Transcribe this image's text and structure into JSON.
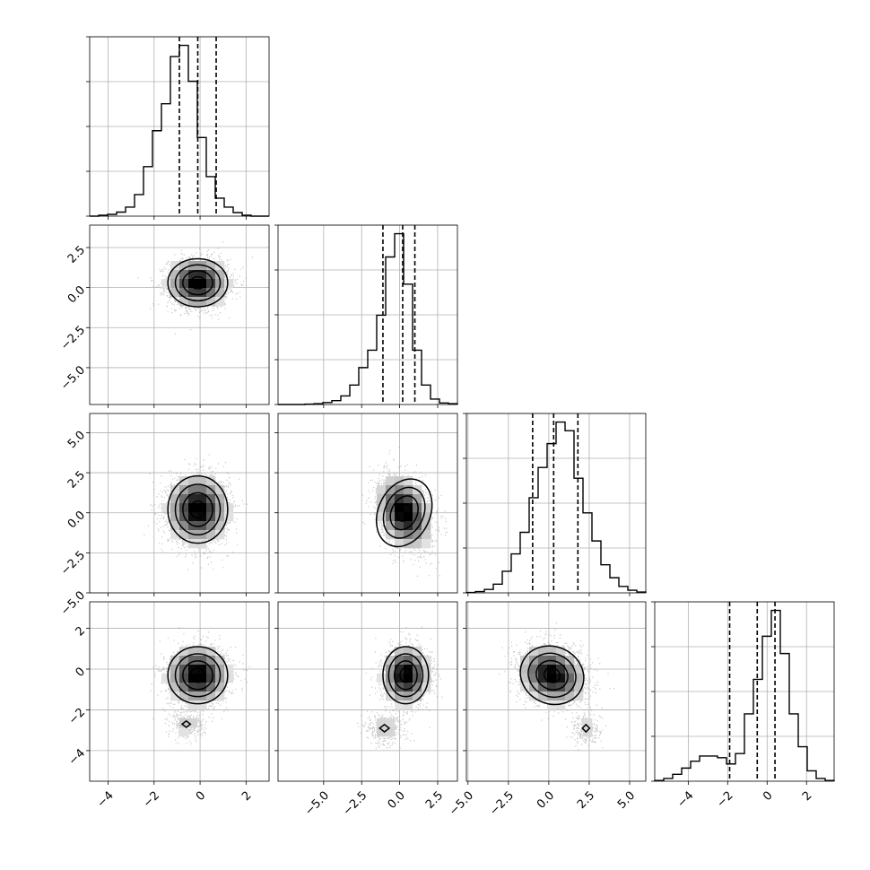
{
  "chart_data": {
    "type": "corner",
    "description": "Corner plot: 1D marginal histograms on diagonal with 16/50/84% quantile dashed lines; 2D density panels below diagonal with scatter points, gray 2D histogram and contours.",
    "parameters": 4,
    "grid": true,
    "quantiles": [
      0.16,
      0.5,
      0.84
    ],
    "axes": {
      "x_ranges": [
        [
          -4.8,
          3.0
        ],
        [
          -8.0,
          3.8
        ],
        [
          -5.1,
          6.0
        ],
        [
          -5.7,
          3.4
        ]
      ],
      "y_ranges_rows": {
        "1": [
          -7.3,
          3.9
        ],
        "2": [
          -5.0,
          6.2
        ],
        "3": [
          -5.5,
          3.3
        ]
      },
      "bottom_ticks": [
        {
          "values": [
            -4,
            -2,
            0,
            2
          ],
          "labels": [
            "−4",
            "−2",
            "0",
            "2"
          ]
        },
        {
          "values": [
            -5.0,
            -2.5,
            0.0,
            2.5
          ],
          "labels": [
            "−5.0",
            "−2.5",
            "0.0",
            "2.5"
          ]
        },
        {
          "values": [
            -5.0,
            -2.5,
            0.0,
            2.5,
            5.0
          ],
          "labels": [
            "−5.0",
            "−2.5",
            "0.0",
            "2.5",
            "5.0"
          ]
        },
        {
          "values": [
            -4,
            -2,
            0,
            2
          ],
          "labels": [
            "−4",
            "−2",
            "0",
            "2"
          ]
        }
      ],
      "left_ticks": {
        "1": {
          "values": [
            2.5,
            0.0,
            -2.5,
            -5.0
          ],
          "labels": [
            "2.5",
            "0.0",
            "−2.5",
            "−5.0"
          ]
        },
        "2": {
          "values": [
            5.0,
            2.5,
            0.0,
            -2.5,
            -5.0
          ],
          "labels": [
            "5.0",
            "2.5",
            "0.0",
            "−2.5",
            "−5.0"
          ]
        },
        "3": {
          "values": [
            2,
            0,
            -2,
            -4
          ],
          "labels": [
            "2",
            "0",
            "−2",
            "−4"
          ]
        }
      }
    },
    "histograms": [
      {
        "param": 0,
        "bin_edges_start": -4.8,
        "bin_width": 0.39,
        "counts": [
          0,
          2,
          4,
          9,
          20,
          48,
          110,
          190,
          250,
          355,
          380,
          300,
          175,
          88,
          40,
          20,
          8,
          2,
          0,
          0
        ],
        "quantile_values": [
          -0.9,
          -0.1,
          0.7
        ]
      },
      {
        "param": 1,
        "bin_edges_start": -8.0,
        "bin_width": 0.59,
        "counts": [
          0,
          0,
          0,
          1,
          2,
          5,
          10,
          22,
          50,
          95,
          140,
          230,
          380,
          440,
          310,
          140,
          50,
          14,
          4,
          2
        ],
        "quantile_values": [
          -1.1,
          0.2,
          1.0
        ]
      },
      {
        "param": 2,
        "bin_edges_start": -5.1,
        "bin_width": 0.555,
        "counts": [
          1,
          3,
          8,
          20,
          50,
          90,
          140,
          220,
          290,
          345,
          395,
          375,
          265,
          185,
          120,
          65,
          35,
          15,
          6,
          2
        ],
        "quantile_values": [
          -1.0,
          0.3,
          1.8
        ]
      },
      {
        "param": 3,
        "bin_edges_start": -5.7,
        "bin_width": 0.455,
        "counts": [
          2,
          8,
          20,
          38,
          58,
          73,
          73,
          68,
          50,
          80,
          195,
          295,
          420,
          495,
          370,
          195,
          100,
          30,
          8,
          2
        ],
        "quantile_values": [
          -1.9,
          -0.5,
          0.4
        ]
      }
    ],
    "density_panels": [
      {
        "row": 1,
        "col": 0,
        "center": [
          -0.1,
          0.3
        ],
        "sd": [
          0.65,
          0.75
        ],
        "corr": 0.0
      },
      {
        "row": 2,
        "col": 0,
        "center": [
          -0.1,
          0.2
        ],
        "sd": [
          0.65,
          1.05
        ],
        "corr": 0.0
      },
      {
        "row": 2,
        "col": 1,
        "center": [
          0.3,
          0.0
        ],
        "sd": [
          0.85,
          1.1
        ],
        "corr": -0.3
      },
      {
        "row": 3,
        "col": 0,
        "center": [
          -0.1,
          -0.3
        ],
        "sd": [
          0.65,
          0.7
        ],
        "corr": 0.0,
        "secondary": {
          "center": [
            -0.6,
            -2.7
          ],
          "sd": [
            0.4,
            0.35
          ],
          "weight": 0.12
        }
      },
      {
        "row": 3,
        "col": 1,
        "center": [
          0.4,
          -0.3
        ],
        "sd": [
          0.75,
          0.7
        ],
        "corr": 0.0,
        "secondary": {
          "center": [
            -1.0,
            -2.9
          ],
          "sd": [
            0.7,
            0.4
          ],
          "weight": 0.12
        }
      },
      {
        "row": 3,
        "col": 2,
        "center": [
          0.2,
          -0.3
        ],
        "sd": [
          1.0,
          0.7
        ],
        "corr": -0.2,
        "secondary": {
          "center": [
            2.3,
            -2.9
          ],
          "sd": [
            0.5,
            0.4
          ],
          "weight": 0.1
        }
      }
    ]
  },
  "colors": {
    "points": "#9a9a9a",
    "lines": "#000000",
    "grid": "#b0b0b0"
  }
}
